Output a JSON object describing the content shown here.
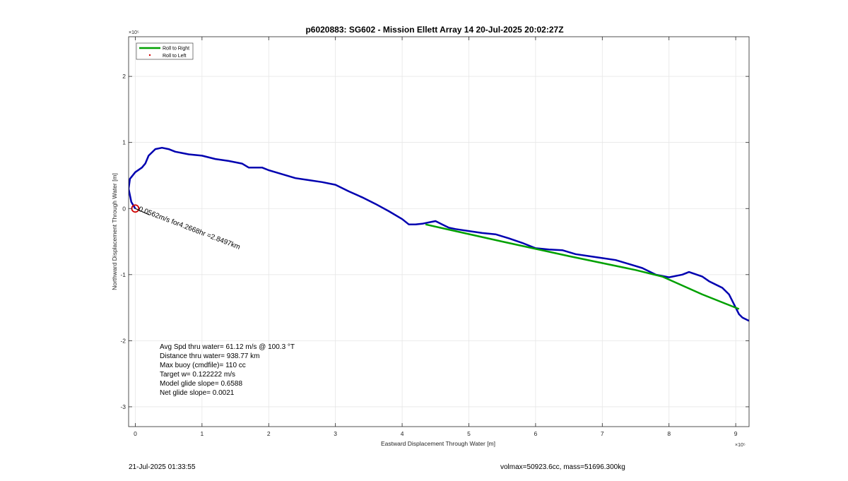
{
  "chart_data": {
    "type": "line",
    "title": "p6020883: SG602 - Mission Ellett Array 14 20-Jul-2025 20:02:27Z",
    "xlabel": "Eastward Displacement Through Water [m]",
    "ylabel": "Northward Displacement Through Water [m]",
    "x_exponent": "×10⁵",
    "y_exponent": "×10⁵",
    "xlim": [
      -0.1,
      9.2
    ],
    "ylim": [
      -3.3,
      2.6
    ],
    "xticks": [
      0,
      1,
      2,
      3,
      4,
      5,
      6,
      7,
      8,
      9
    ],
    "yticks": [
      -3,
      -2,
      -1,
      0,
      1,
      2
    ],
    "xtick_labels": [
      "0",
      "1",
      "2",
      "3",
      "4",
      "5",
      "6",
      "7",
      "8",
      "9"
    ],
    "ytick_labels": [
      "-3",
      "-2",
      "-1",
      "0",
      "1",
      "2"
    ],
    "grid": true,
    "legend_position": "top-left",
    "series": [
      {
        "name": "Roll to Right",
        "color": "#00a000",
        "style": "line",
        "x": [
          4.35,
          5.5,
          6.5,
          7.5,
          7.9,
          8.5,
          9.05
        ],
        "y": [
          -0.24,
          -0.5,
          -0.72,
          -0.93,
          -1.03,
          -1.3,
          -1.52
        ]
      },
      {
        "name": "Roll to Left",
        "color": "#d00000",
        "style": "marker",
        "x": [],
        "y": []
      },
      {
        "name": "",
        "color": "#0000b0",
        "style": "line",
        "x": [
          0,
          -0.06,
          -0.1,
          -0.08,
          0.0,
          0.1,
          0.15,
          0.2,
          0.3,
          0.4,
          0.5,
          0.6,
          0.8,
          1.0,
          1.2,
          1.4,
          1.6,
          1.7,
          1.9,
          2.0,
          2.2,
          2.4,
          2.6,
          2.8,
          3.0,
          3.2,
          3.4,
          3.6,
          3.8,
          4.0,
          4.1,
          4.2,
          4.3,
          4.4,
          4.5,
          4.6,
          4.7,
          4.8,
          5.0,
          5.2,
          5.4,
          5.6,
          5.8,
          6.0,
          6.2,
          6.4,
          6.6,
          6.8,
          7.0,
          7.2,
          7.4,
          7.6,
          7.8,
          8.0,
          8.2,
          8.3,
          8.5,
          8.6,
          8.8,
          8.9,
          9.0,
          9.05,
          9.1,
          9.2
        ],
        "y": [
          0.0,
          0.1,
          0.3,
          0.45,
          0.55,
          0.62,
          0.68,
          0.8,
          0.9,
          0.92,
          0.9,
          0.86,
          0.82,
          0.8,
          0.75,
          0.72,
          0.68,
          0.62,
          0.62,
          0.58,
          0.52,
          0.46,
          0.43,
          0.4,
          0.36,
          0.26,
          0.17,
          0.07,
          -0.04,
          -0.16,
          -0.24,
          -0.24,
          -0.23,
          -0.21,
          -0.19,
          -0.24,
          -0.29,
          -0.31,
          -0.34,
          -0.37,
          -0.39,
          -0.45,
          -0.52,
          -0.6,
          -0.62,
          -0.63,
          -0.69,
          -0.72,
          -0.75,
          -0.78,
          -0.84,
          -0.9,
          -1.0,
          -1.04,
          -1.0,
          -0.96,
          -1.03,
          -1.1,
          -1.2,
          -1.3,
          -1.5,
          -1.6,
          -1.65,
          -1.7
        ]
      }
    ],
    "start_marker": {
      "x": 0,
      "y": 0,
      "color": "#d00000"
    },
    "current_label": "0.0562m/s for4.2668hr =2.8497km",
    "stats_text": [
      "Avg Spd thru water= 61.12 m/s @ 100.3 °T",
      "Distance thru water= 938.77 km",
      "Max buoy (cmdfile)= 110 cc",
      "Target w= 0.122222 m/s",
      "Model glide slope= 0.6588",
      "Net glide slope= 0.0021"
    ]
  },
  "footer": {
    "timestamp": "21-Jul-2025 01:33:55",
    "volmax_mass": "volmax=50923.6cc, mass=51696.300kg"
  }
}
